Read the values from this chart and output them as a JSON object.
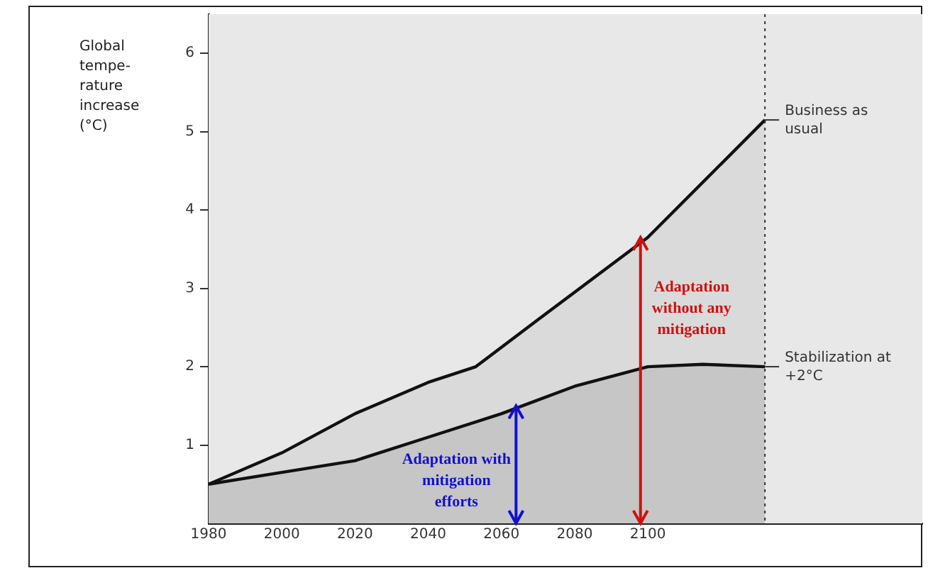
{
  "chart_data": {
    "type": "area",
    "ylabel": "Global tempe-rature increase (°C)",
    "xlim": [
      1980,
      2175
    ],
    "xticks": [
      1980,
      2000,
      2020,
      2040,
      2060,
      2080,
      2100
    ],
    "ylim": [
      0,
      6.5
    ],
    "yticks": [
      1,
      2,
      3,
      4,
      5,
      6
    ],
    "series": [
      {
        "name": "Business as usual",
        "color": "#dadada",
        "x": [
          1980,
          2000,
          2020,
          2040,
          2053,
          2070,
          2100,
          2132
        ],
        "values": [
          0.5,
          0.9,
          1.4,
          1.8,
          2.0,
          2.6,
          3.65,
          5.15
        ]
      },
      {
        "name": "Stabilization at +2°C",
        "color": "#c6c6c6",
        "x": [
          1980,
          2000,
          2020,
          2040,
          2060,
          2080,
          2100,
          2115,
          2132
        ],
        "values": [
          0.5,
          0.65,
          0.8,
          1.1,
          1.4,
          1.75,
          2.0,
          2.03,
          2.0
        ]
      }
    ],
    "ref_lines": [
      {
        "axis": "x",
        "value": 2132,
        "line_style": "dotted"
      }
    ],
    "annotations": [
      {
        "text": "Adaptation with mitigation efforts",
        "x": 2064,
        "y": 1.5
      },
      {
        "text": "Adaptation without any mitigation",
        "x": 2098,
        "y": 3.65
      }
    ],
    "legend": false,
    "marker": "none",
    "line_style": "solid"
  }
}
